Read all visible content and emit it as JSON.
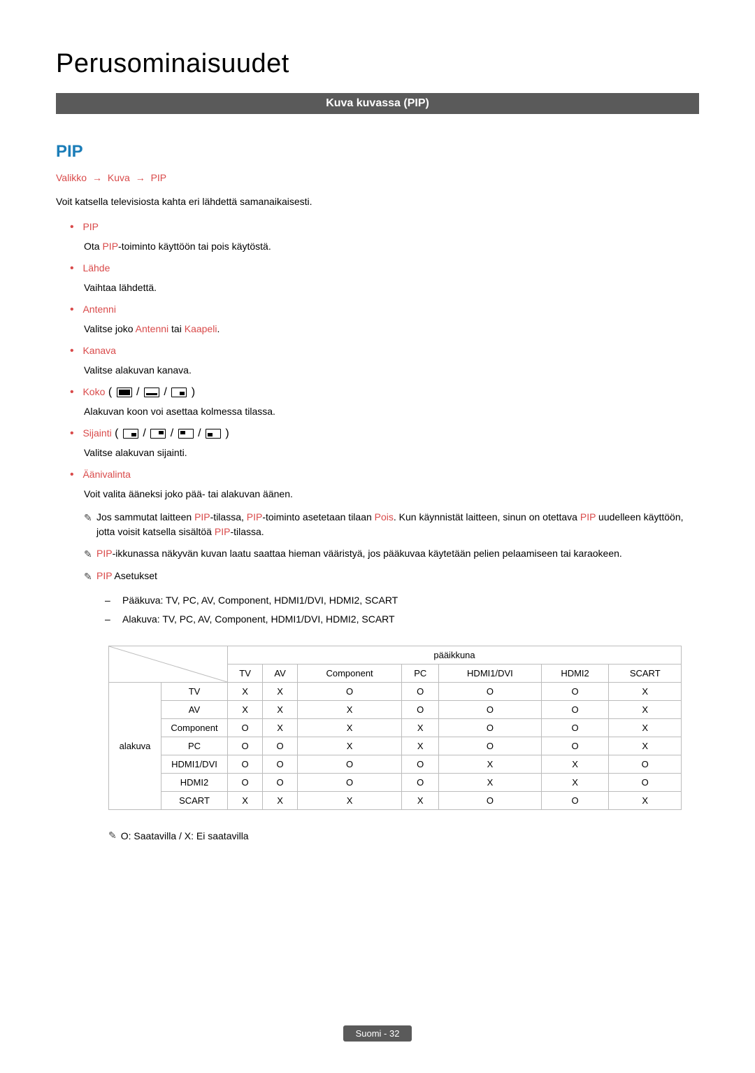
{
  "title": "Perusominaisuudet",
  "section_bar": "Kuva kuvassa (PIP)",
  "heading": "PIP",
  "breadcrumb": {
    "a": "Valikko",
    "b": "Kuva",
    "c": "PIP"
  },
  "intro": "Voit katsella televisiosta kahta eri lähdettä samanaikaisesti.",
  "items": {
    "pip": {
      "label": "PIP",
      "line1": "Ota ",
      "kw1": "PIP",
      "line2": "-toiminto käyttöön tai pois käytöstä."
    },
    "lahde": {
      "label": "Lähde",
      "desc": "Vaihtaa lähdettä."
    },
    "antenni": {
      "label": "Antenni",
      "d1": "Valitse joko ",
      "k1": "Antenni",
      "d2": " tai ",
      "k2": "Kaapeli",
      "d3": "."
    },
    "kanava": {
      "label": "Kanava",
      "desc": "Valitse alakuvan kanava."
    },
    "koko": {
      "label": "Koko",
      "desc": "Alakuvan koon voi asettaa kolmessa tilassa."
    },
    "sijainti": {
      "label": "Sijainti",
      "desc": "Valitse alakuvan sijainti."
    },
    "aani": {
      "label": "Äänivalinta",
      "desc": "Voit valita ääneksi joko pää- tai alakuvan äänen."
    }
  },
  "notes": {
    "n1a": "Jos sammutat laitteen ",
    "n1b": "-tilassa, ",
    "n1c": "-toiminto asetetaan tilaan ",
    "n1p": "Pois",
    "n1d": ". Kun käynnistät laitteen, sinun on otettava ",
    "n1e": " uudelleen käyttöön, jotta voisit katsella sisältöä ",
    "n1f": "-tilassa.",
    "n2a": "-ikkunassa näkyvän kuvan laatu saattaa hieman vääristyä, jos pääkuvaa käytetään pelien pelaamiseen tai karaokeen.",
    "n3": " Asetukset",
    "sub1": "Pääkuva: TV, PC, AV, Component, HDMI1/DVI, HDMI2, SCART",
    "sub2": "Alakuva: TV, PC, AV, Component, HDMI1/DVI, HDMI2, SCART"
  },
  "kw_pip": "PIP",
  "table": {
    "top_header": "pääikkuna",
    "side_header": "alakuva",
    "cols": [
      "TV",
      "AV",
      "Component",
      "PC",
      "HDMI1/DVI",
      "HDMI2",
      "SCART"
    ],
    "rows": [
      "TV",
      "AV",
      "Component",
      "PC",
      "HDMI1/DVI",
      "HDMI2",
      "SCART"
    ],
    "cells": [
      [
        "X",
        "X",
        "O",
        "O",
        "O",
        "O",
        "X"
      ],
      [
        "X",
        "X",
        "X",
        "O",
        "O",
        "O",
        "X"
      ],
      [
        "O",
        "X",
        "X",
        "X",
        "O",
        "O",
        "X"
      ],
      [
        "O",
        "O",
        "X",
        "X",
        "O",
        "O",
        "X"
      ],
      [
        "O",
        "O",
        "O",
        "O",
        "X",
        "X",
        "O"
      ],
      [
        "O",
        "O",
        "O",
        "O",
        "X",
        "X",
        "O"
      ],
      [
        "X",
        "X",
        "X",
        "X",
        "O",
        "O",
        "X"
      ]
    ]
  },
  "legend": "O: Saatavilla / X: Ei saatavilla",
  "footer": "Suomi - 32"
}
